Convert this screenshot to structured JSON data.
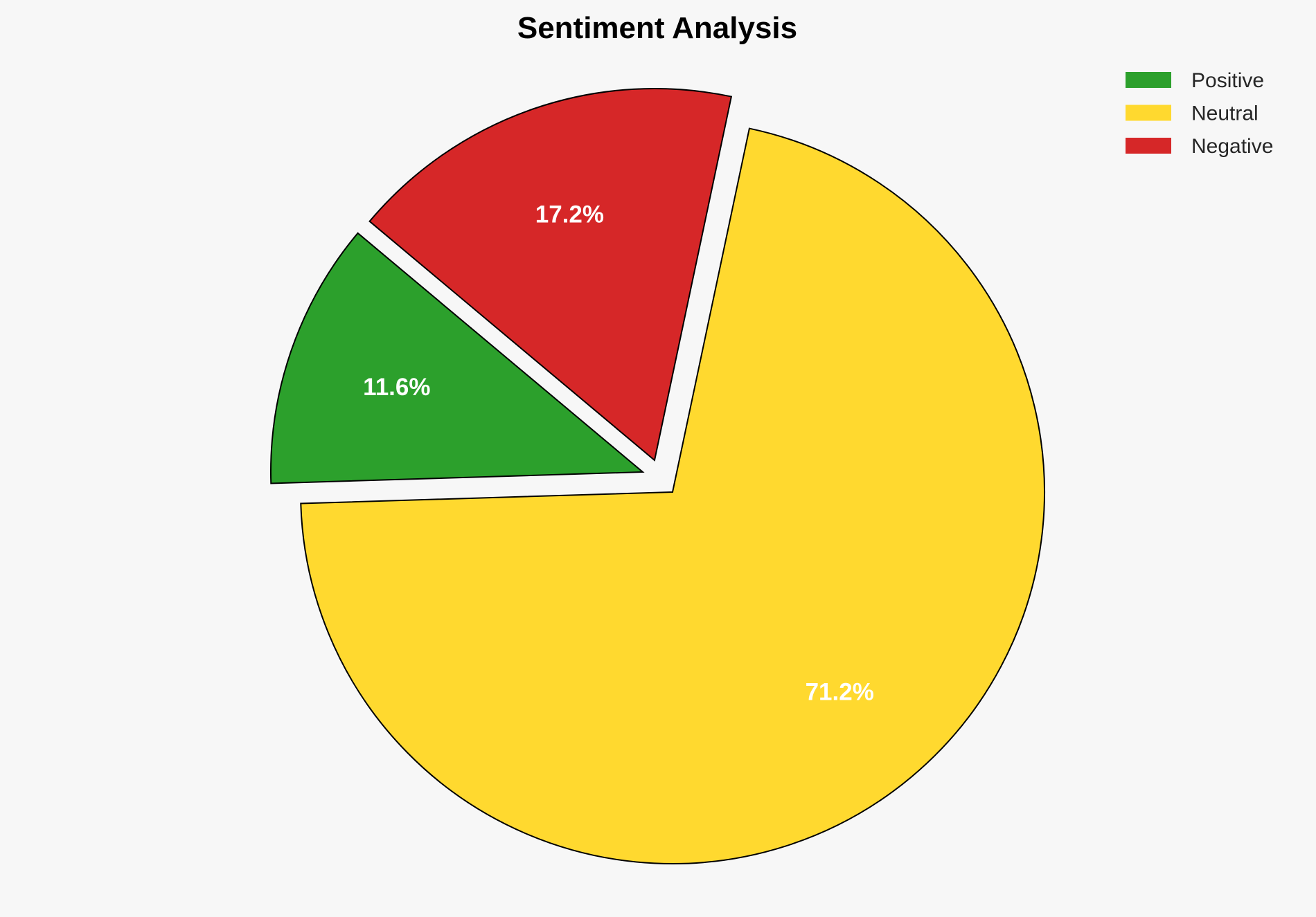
{
  "chart_data": {
    "type": "pie",
    "title": "Sentiment Analysis",
    "categories": [
      "Positive",
      "Neutral",
      "Negative"
    ],
    "values": [
      11.6,
      71.2,
      17.2
    ],
    "labels": [
      "11.6%",
      "71.2%",
      "17.2%"
    ],
    "colors": [
      "#2ca02c",
      "#ffd92f",
      "#d62728"
    ],
    "start_angle": 140,
    "counterclockwise": true,
    "exploded": [
      "Positive",
      "Negative"
    ],
    "legend_position": "top-right"
  }
}
